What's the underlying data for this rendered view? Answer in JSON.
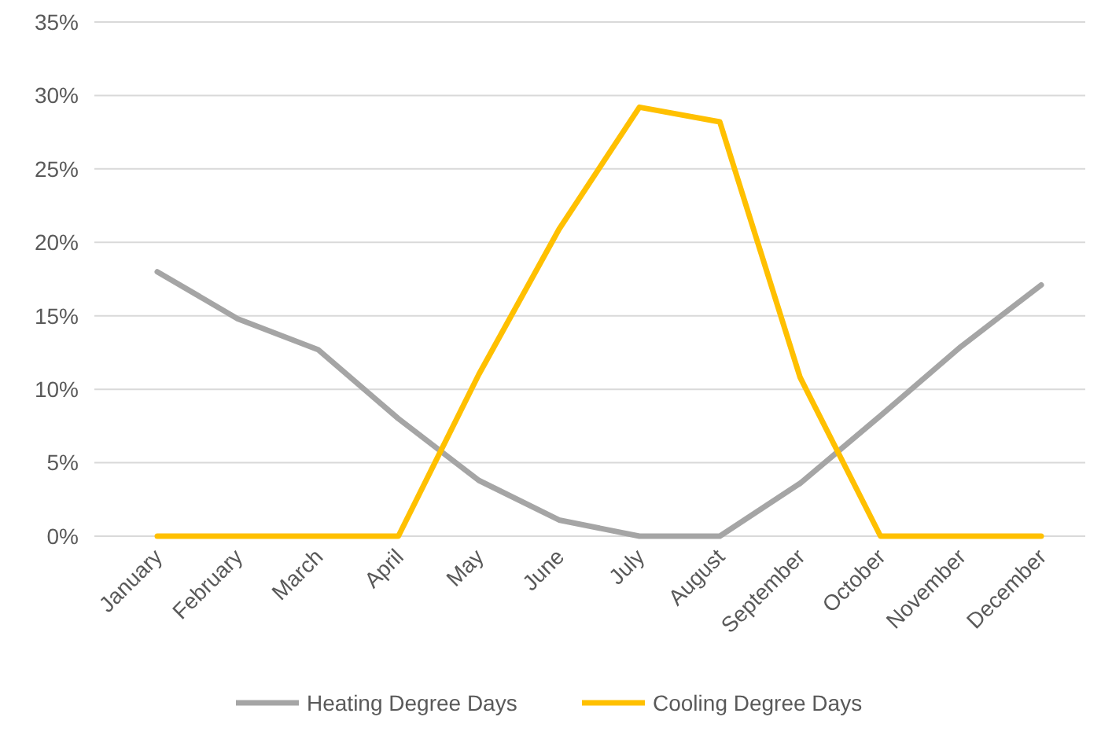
{
  "chart_data": {
    "type": "line",
    "categories": [
      "January",
      "February",
      "March",
      "April",
      "May",
      "June",
      "July",
      "August",
      "September",
      "October",
      "November",
      "December"
    ],
    "series": [
      {
        "name": "Heating Degree Days",
        "color": "#a5a5a5",
        "values": [
          18.0,
          14.8,
          12.7,
          8.0,
          3.8,
          1.1,
          0,
          0,
          3.6,
          8.2,
          12.9,
          17.1
        ]
      },
      {
        "name": "Cooling Degree Days",
        "color": "#ffc000",
        "values": [
          0,
          0,
          0,
          0,
          11.0,
          20.9,
          29.2,
          28.2,
          10.8,
          0,
          0,
          0
        ]
      }
    ],
    "ylim": [
      0,
      35
    ],
    "yticks": [
      {
        "value": 0,
        "label": "0%"
      },
      {
        "value": 5,
        "label": "5%"
      },
      {
        "value": 10,
        "label": "10%"
      },
      {
        "value": 15,
        "label": "15%"
      },
      {
        "value": 20,
        "label": "20%"
      },
      {
        "value": 25,
        "label": "25%"
      },
      {
        "value": 30,
        "label": "30%"
      },
      {
        "value": 35,
        "label": "35%"
      }
    ],
    "grid": "y",
    "legend": "bottom",
    "marker": "none",
    "line_style": "solid"
  }
}
